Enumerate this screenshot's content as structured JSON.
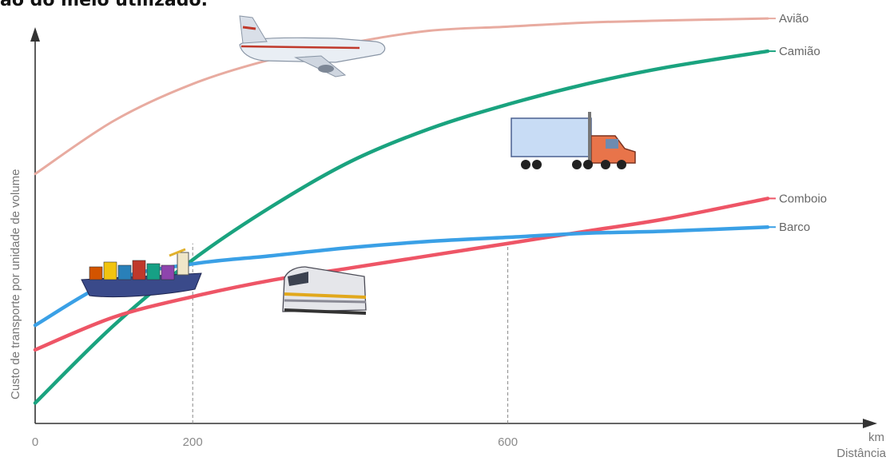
{
  "heading": "ão do meio utilizado.",
  "chart_data": {
    "type": "line",
    "xlabel": "Distância",
    "xunit": "km",
    "ylabel": "Custo de transporte por unidade de volume",
    "x_ticks": [
      0,
      200,
      600
    ],
    "xlim": [
      0,
      1000
    ],
    "ylim": [
      0,
      1
    ],
    "reference_lines_x": [
      200,
      600
    ],
    "grid": false,
    "series": [
      {
        "name": "Avião",
        "color": "#e8aba0",
        "x": [
          0,
          100,
          200,
          300,
          400,
          500,
          600,
          700,
          800,
          930
        ],
        "y": [
          0.61,
          0.74,
          0.83,
          0.89,
          0.93,
          0.96,
          0.97,
          0.98,
          0.985,
          0.99
        ],
        "icon": "airplane-icon"
      },
      {
        "name": "Camião",
        "color": "#1aa37f",
        "x": [
          0,
          100,
          200,
          300,
          400,
          500,
          600,
          700,
          800,
          930
        ],
        "y": [
          0.05,
          0.24,
          0.4,
          0.53,
          0.64,
          0.72,
          0.78,
          0.83,
          0.87,
          0.91
        ],
        "icon": "truck-icon"
      },
      {
        "name": "Comboio",
        "color": "#ee5566",
        "x": [
          0,
          100,
          200,
          300,
          400,
          500,
          600,
          700,
          800,
          930
        ],
        "y": [
          0.18,
          0.26,
          0.31,
          0.35,
          0.38,
          0.41,
          0.44,
          0.47,
          0.5,
          0.55
        ],
        "icon": "train-icon"
      },
      {
        "name": "Barco",
        "color": "#3aa0e6",
        "x": [
          0,
          100,
          200,
          300,
          400,
          500,
          600,
          700,
          800,
          930
        ],
        "y": [
          0.24,
          0.35,
          0.39,
          0.41,
          0.43,
          0.445,
          0.455,
          0.465,
          0.47,
          0.48
        ],
        "icon": "ship-icon"
      }
    ]
  }
}
